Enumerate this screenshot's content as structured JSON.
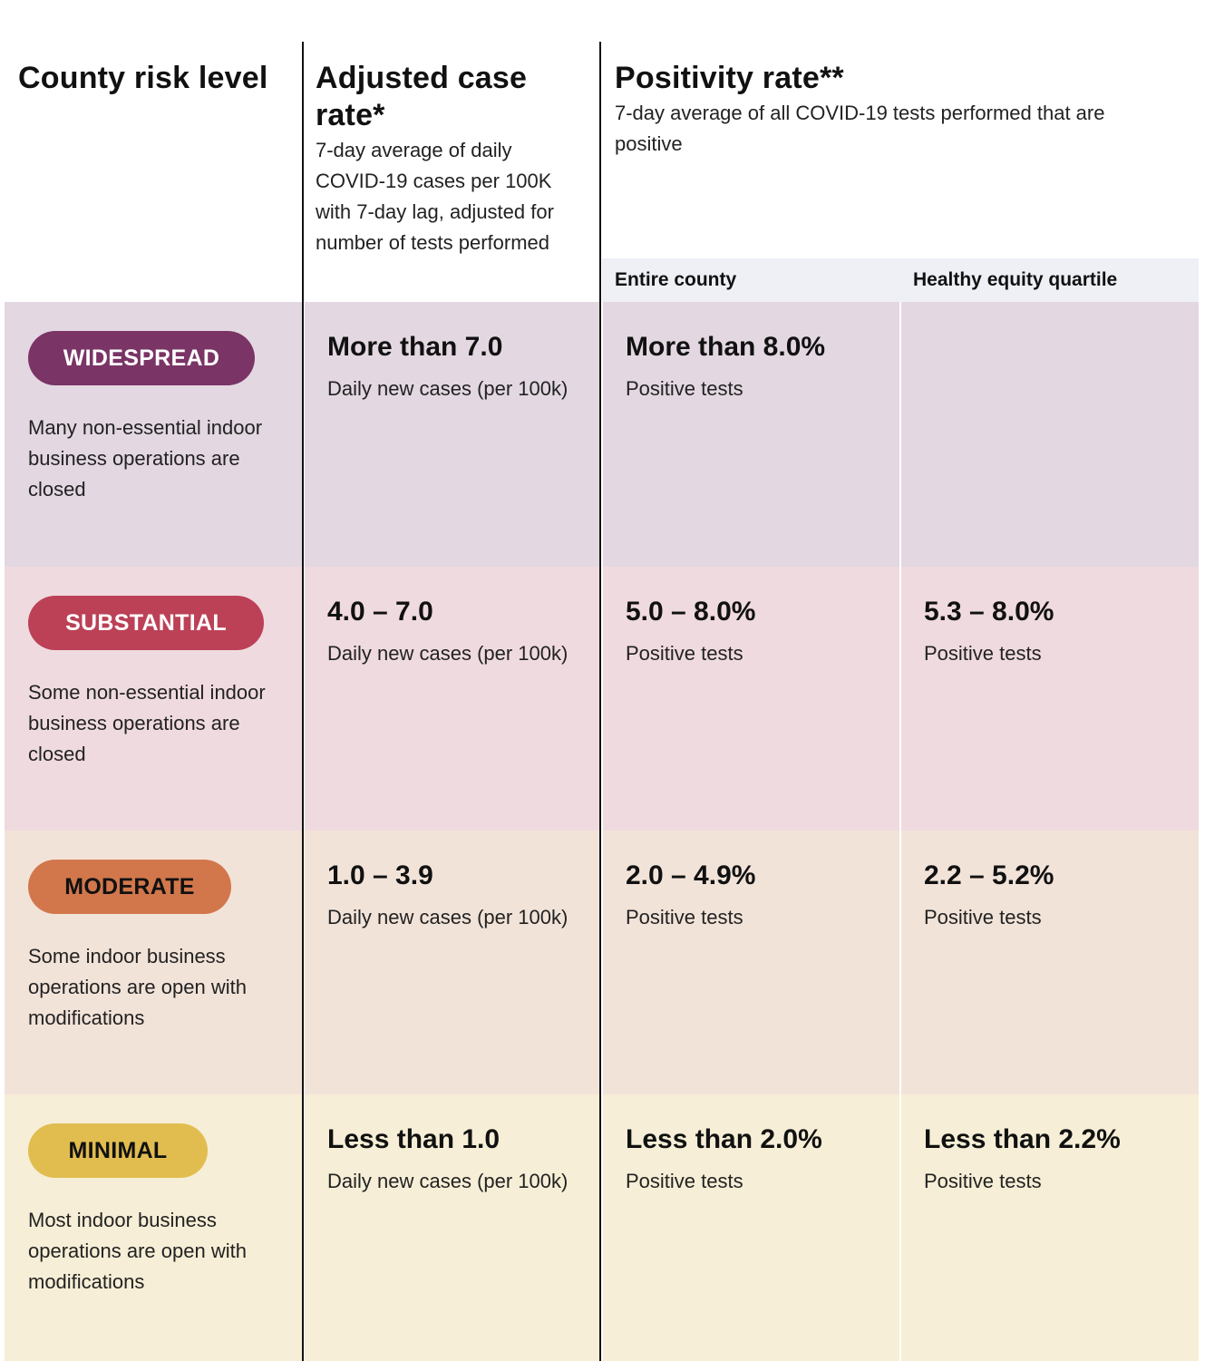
{
  "header": {
    "col1_title": "County risk level",
    "col2_title": "Adjusted case rate*",
    "col2_desc": "7-day average of daily COVID-19 cases per 100K with 7-day lag, adjusted for number of tests performed",
    "col3_title": "Positivity rate**",
    "col3_desc": "7-day average of all COVID-19 tests performed that are positive",
    "sub_entire": "Entire county",
    "sub_equity": "Healthy equity quartile"
  },
  "rows": [
    {
      "tier": "WIDESPREAD",
      "description": "Many non-essential indoor business operations are closed",
      "case_rate": "More than 7.0",
      "case_unit": "Daily new cases (per 100k)",
      "county_rate": "More than 8.0%",
      "county_unit": "Positive tests",
      "equity_rate": "",
      "equity_unit": "",
      "colors": {
        "pill": "#7a3466",
        "pill_text": "#ffffff",
        "bg": "#e3d7e1"
      }
    },
    {
      "tier": "SUBSTANTIAL",
      "description": "Some non-essential indoor business operations are closed",
      "case_rate": "4.0 – 7.0",
      "case_unit": "Daily new cases (per 100k)",
      "county_rate": "5.0 – 8.0%",
      "county_unit": "Positive tests",
      "equity_rate": "5.3 – 8.0%",
      "equity_unit": "Positive tests",
      "colors": {
        "pill": "#bc4156",
        "pill_text": "#ffffff",
        "bg": "#efdadf"
      }
    },
    {
      "tier": "MODERATE",
      "description": "Some indoor business operations are open with modifications",
      "case_rate": "1.0 – 3.9",
      "case_unit": "Daily new cases (per 100k)",
      "county_rate": "2.0 – 4.9%",
      "county_unit": "Positive tests",
      "equity_rate": "2.2 – 5.2%",
      "equity_unit": "Positive tests",
      "colors": {
        "pill": "#d2774c",
        "pill_text": "#111111",
        "bg": "#f2e3d9"
      }
    },
    {
      "tier": "MINIMAL",
      "description": "Most indoor business operations are open with modifications",
      "case_rate": "Less than 1.0",
      "case_unit": "Daily new cases (per 100k)",
      "county_rate": "Less than 2.0%",
      "county_unit": "Positive tests",
      "equity_rate": "Less than 2.2%",
      "equity_unit": "Positive tests",
      "colors": {
        "pill": "#e1bd4f",
        "pill_text": "#111111",
        "bg": "#f6eed6"
      }
    }
  ]
}
